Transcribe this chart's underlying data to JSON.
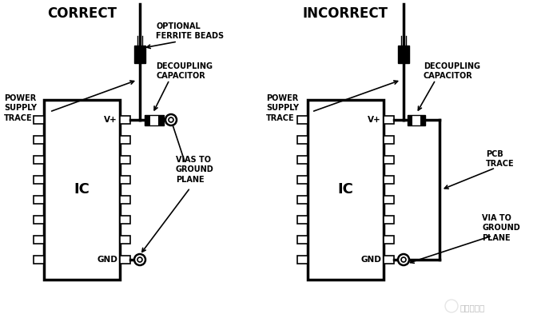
{
  "bg_color": "#ffffff",
  "title_correct": "CORRECT",
  "title_incorrect": "INCORRECT",
  "label_power_supply_trace": "POWER\nSUPPLY\nTRACE",
  "label_decoupling_cap": "DECOUPLING\nCAPACITOR",
  "label_optional_ferrite": "OPTIONAL\nFERRITE BEADS",
  "label_vias": "VIAS TO\nGROUND\nPLANE",
  "label_pcb_trace": "PCB\nTRACE",
  "label_via_to_ground": "VIA TO\nGROUND\nPLANE",
  "label_ic": "IC",
  "label_vplus": "V+",
  "label_gnd": "GND",
  "watermark": "工程师看海"
}
